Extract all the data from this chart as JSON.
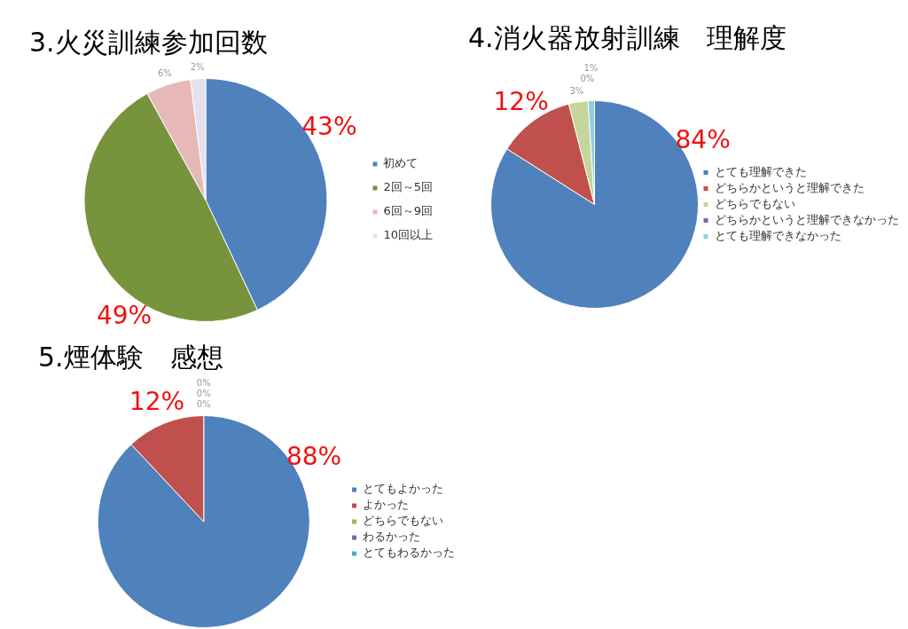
{
  "chart_data": [
    {
      "type": "pie",
      "title": "3.火災訓練参加回数",
      "categories": [
        "初めて",
        "2回～5回",
        "6回～9回",
        "10回以上"
      ],
      "values": [
        43,
        49,
        6,
        2
      ],
      "colors": [
        "#4f81bd",
        "#77933c",
        "#e6b9b8",
        "#e6e0ec"
      ],
      "value_labels": [
        "43%",
        "49%",
        "6%",
        "2%"
      ],
      "legend": "right"
    },
    {
      "type": "pie",
      "title": "4.消火器放射訓練　理解度",
      "categories": [
        "とても理解できた",
        "どちらかというと理解できた",
        "どちらでもない",
        "どちらかというと理解できなかった",
        "とても理解できなかった"
      ],
      "values": [
        84,
        12,
        3,
        0,
        1
      ],
      "colors": [
        "#4f81bd",
        "#c0504d",
        "#c3d69b",
        "#8064a2",
        "#93cddd"
      ],
      "value_labels": [
        "84%",
        "12%",
        "3%",
        "0%",
        "1%"
      ],
      "legend": "right"
    },
    {
      "type": "pie",
      "title": "5.煙体験　感想",
      "categories": [
        "とてもよかった",
        "よかった",
        "どちらでもない",
        "わるかった",
        "とてもわるかった"
      ],
      "values": [
        88,
        12,
        0,
        0,
        0
      ],
      "colors": [
        "#4f81bd",
        "#c0504d",
        "#9bbb59",
        "#8064a2",
        "#4bacc6"
      ],
      "value_labels": [
        "88%",
        "12%",
        "0%",
        "0%",
        "0%"
      ],
      "legend": "right"
    }
  ]
}
